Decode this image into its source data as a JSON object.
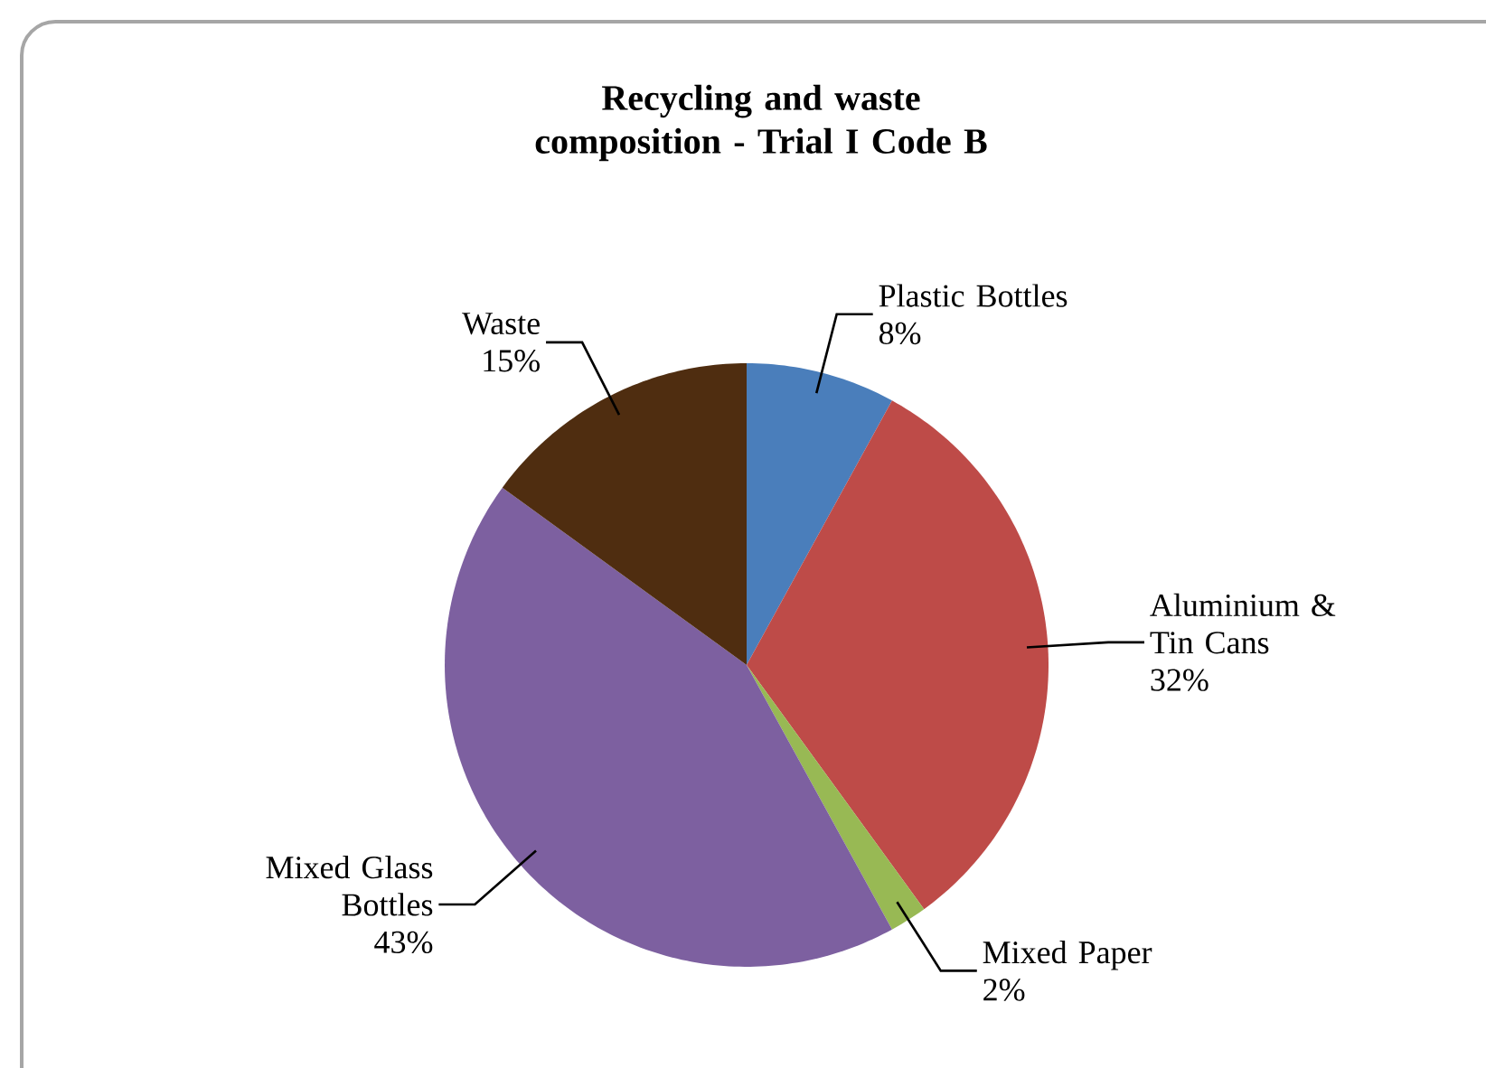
{
  "chart_data": {
    "type": "pie",
    "title": "Recycling and waste composition - Trial I Code B",
    "categories": [
      "Plastic Bottles",
      "Aluminium & Tin Cans",
      "Mixed Paper",
      "Mixed Glass Bottles",
      "Waste"
    ],
    "values": [
      8,
      32,
      2,
      43,
      15
    ],
    "value_labels": [
      "8%",
      "32%",
      "2%",
      "43%",
      "15%"
    ],
    "colors": [
      "#4a7ebb",
      "#be4b48",
      "#98b954",
      "#7d60a0",
      "#4f2d10"
    ]
  }
}
